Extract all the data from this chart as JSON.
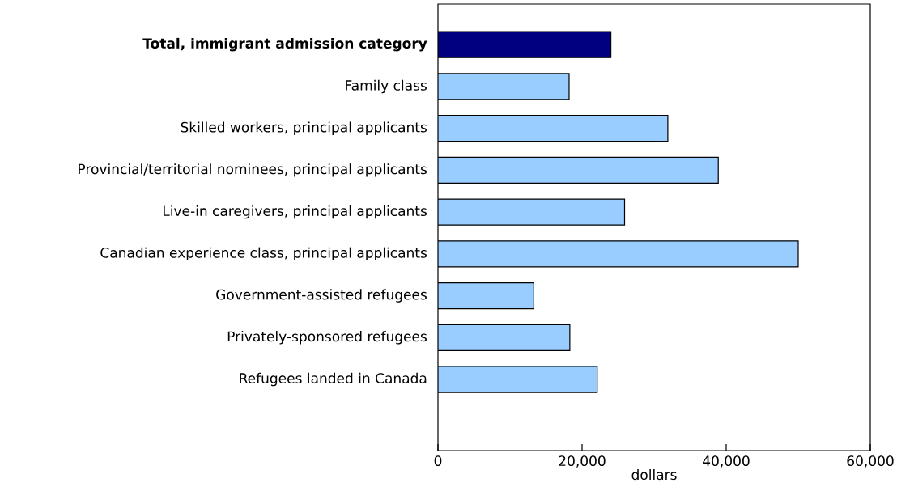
{
  "chart_data": {
    "type": "bar",
    "orientation": "horizontal",
    "categories": [
      "**Total, immigrant admission category**",
      "Family class",
      "Skilled workers, principal applicants",
      "Provincial/territorial nominees, principal applicants",
      "Live-in caregivers, principal applicants",
      "Canadian experience class, principal applicants",
      "Government-assisted refugees",
      "Privately-sponsored refugees",
      "Refugees landed in Canada"
    ],
    "values": [
      24000,
      18200,
      31900,
      38900,
      25900,
      50000,
      13300,
      18300,
      22100
    ],
    "colors": [
      "#000080",
      "#99ccff",
      "#99ccff",
      "#99ccff",
      "#99ccff",
      "#99ccff",
      "#99ccff",
      "#99ccff",
      "#99ccff"
    ],
    "xlabel": "dollars",
    "xlim": [
      0,
      60000
    ],
    "xticks": [
      0,
      {
        "value": 20000,
        "label": "20,000"
      },
      {
        "value": 40000,
        "label": "40,000"
      },
      {
        "value": 60000,
        "label": "60,000"
      }
    ]
  }
}
